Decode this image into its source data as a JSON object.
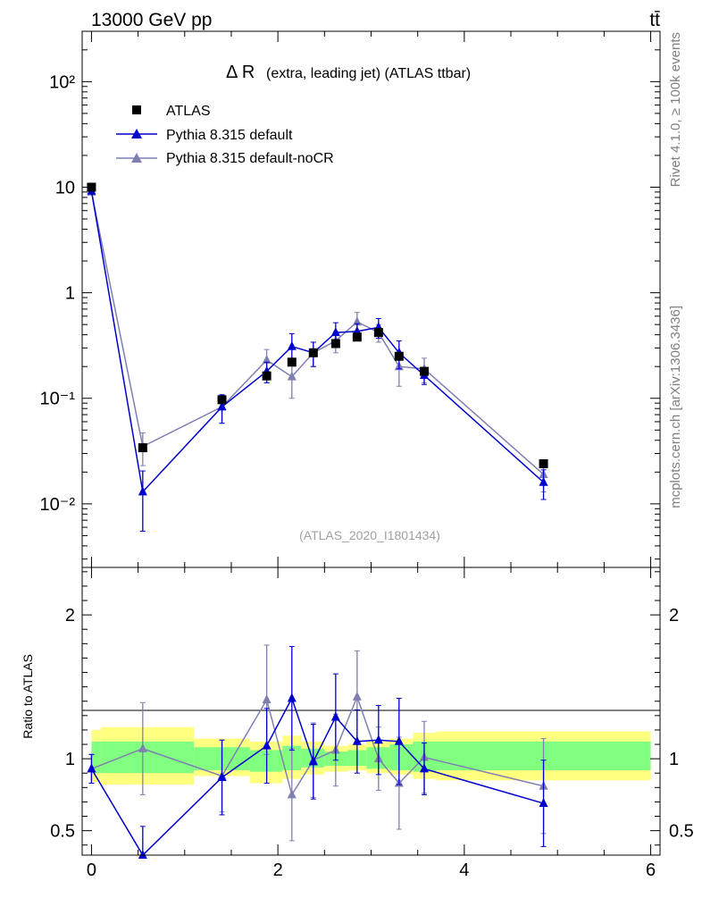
{
  "header": {
    "left": "13000 GeV pp",
    "right": "tt̄"
  },
  "side_labels": {
    "rivet": "Rivet 4.1.0, ≥ 100k events",
    "mcplots": "mcplots.cern.ch [arXiv:1306.3436]"
  },
  "colors": {
    "atlas": "#000000",
    "default": "#0000cc",
    "nocr": "#7f7fb2",
    "band_outer": "#ffff80",
    "band_inner": "#80ff80"
  },
  "chart_data": [
    {
      "type": "line",
      "title_symbol": "Δ R",
      "title_rest": "(extra, leading jet) (ATLAS ttbar)",
      "watermark": "(ATLAS_2020_I1801434)",
      "yscale": "log",
      "ylim": [
        0.0025,
        300
      ],
      "xlim": [
        -0.1,
        6.1
      ],
      "y_tick_labels": [
        "10⁻²",
        "10⁻¹",
        "1",
        "10",
        "10²"
      ],
      "y_tick_values": [
        0.01,
        0.1,
        1,
        10,
        100
      ],
      "legend": [
        "ATLAS",
        "Pythia 8.315 default",
        "Pythia 8.315 default-noCR"
      ],
      "series": [
        {
          "name": "ATLAS",
          "marker": "square",
          "x": [
            0.0,
            0.55,
            1.4,
            1.88,
            2.15,
            2.38,
            2.62,
            2.85,
            3.08,
            3.3,
            3.57,
            4.85
          ],
          "y": [
            10.0,
            0.034,
            0.097,
            0.163,
            0.22,
            0.27,
            0.33,
            0.38,
            0.42,
            0.25,
            0.18,
            0.024
          ]
        },
        {
          "name": "Pythia 8.315 default",
          "marker": "triangle",
          "x": [
            0.0,
            0.55,
            1.4,
            1.88,
            2.15,
            2.38,
            2.62,
            2.85,
            3.08,
            3.3,
            3.57,
            4.85
          ],
          "y": [
            9.2,
            0.013,
            0.083,
            0.18,
            0.31,
            0.27,
            0.42,
            0.43,
            0.47,
            0.27,
            0.165,
            0.016
          ],
          "err": [
            0.3,
            0.0075,
            0.025,
            0.04,
            0.1,
            0.07,
            0.1,
            0.08,
            0.1,
            0.08,
            0.03,
            0.005
          ]
        },
        {
          "name": "Pythia 8.315 default-noCR",
          "marker": "triangle",
          "x": [
            0.0,
            0.55,
            1.4,
            1.88,
            2.15,
            2.38,
            2.62,
            2.85,
            3.08,
            3.3,
            3.57,
            4.85
          ],
          "y": [
            9.0,
            0.035,
            0.083,
            0.23,
            0.16,
            0.27,
            0.35,
            0.53,
            0.42,
            0.2,
            0.19,
            0.019
          ],
          "err": [
            0.3,
            0.012,
            0.025,
            0.06,
            0.06,
            0.07,
            0.08,
            0.12,
            0.08,
            0.07,
            0.05,
            0.006
          ]
        }
      ]
    },
    {
      "type": "line",
      "ylabel": "Ratio to ATLAS",
      "ylim": [
        0.33,
        2.33
      ],
      "xlim": [
        -0.1,
        6.1
      ],
      "y_tick_labels": [
        "0.5",
        "1",
        "2"
      ],
      "y_tick_values": [
        0.5,
        1,
        2
      ],
      "x_tick_labels": [
        "0",
        "2",
        "4",
        "6"
      ],
      "x_tick_values": [
        0,
        2,
        4,
        6
      ],
      "bands": {
        "edges": [
          0.0,
          0.1,
          1.1,
          1.7,
          2.05,
          2.25,
          2.5,
          2.75,
          2.95,
          3.2,
          3.45,
          3.7,
          6.0
        ],
        "outer_lo": [
          0.84,
          0.82,
          0.88,
          0.83,
          0.86,
          0.89,
          0.91,
          0.92,
          0.9,
          0.89,
          0.86,
          0.85
        ],
        "outer_hi": [
          1.2,
          1.22,
          1.14,
          1.12,
          1.16,
          1.12,
          1.09,
          1.1,
          1.12,
          1.14,
          1.18,
          1.19
        ],
        "inner_lo": [
          0.9,
          0.9,
          0.92,
          0.91,
          0.92,
          0.94,
          0.95,
          0.95,
          0.93,
          0.92,
          0.91,
          0.92
        ],
        "inner_hi": [
          1.12,
          1.12,
          1.08,
          1.06,
          1.09,
          1.07,
          1.05,
          1.06,
          1.08,
          1.1,
          1.12,
          1.12
        ]
      },
      "series": [
        {
          "name": "Pythia 8.315 default",
          "x": [
            0.0,
            0.55,
            1.4,
            1.88,
            2.15,
            2.38,
            2.62,
            2.85,
            3.08,
            3.3,
            3.57,
            4.85
          ],
          "y": [
            0.93,
            0.33,
            0.87,
            1.09,
            1.42,
            0.98,
            1.29,
            1.12,
            1.13,
            1.12,
            0.93,
            0.69
          ],
          "err": [
            0.1,
            0.2,
            0.26,
            0.26,
            0.36,
            0.26,
            0.3,
            0.22,
            0.24,
            0.3,
            0.18,
            0.3
          ]
        },
        {
          "name": "Pythia 8.315 default-noCR",
          "x": [
            0.0,
            0.55,
            1.4,
            1.88,
            2.15,
            2.38,
            2.62,
            2.85,
            3.08,
            3.3,
            3.57,
            4.85
          ],
          "y": [
            0.93,
            1.07,
            0.88,
            1.41,
            0.75,
            0.99,
            1.06,
            1.43,
            1.0,
            0.83,
            1.01,
            0.81
          ],
          "err": [
            0.1,
            0.32,
            0.25,
            0.38,
            0.32,
            0.26,
            0.25,
            0.32,
            0.22,
            0.32,
            0.25,
            0.33
          ]
        }
      ]
    }
  ]
}
